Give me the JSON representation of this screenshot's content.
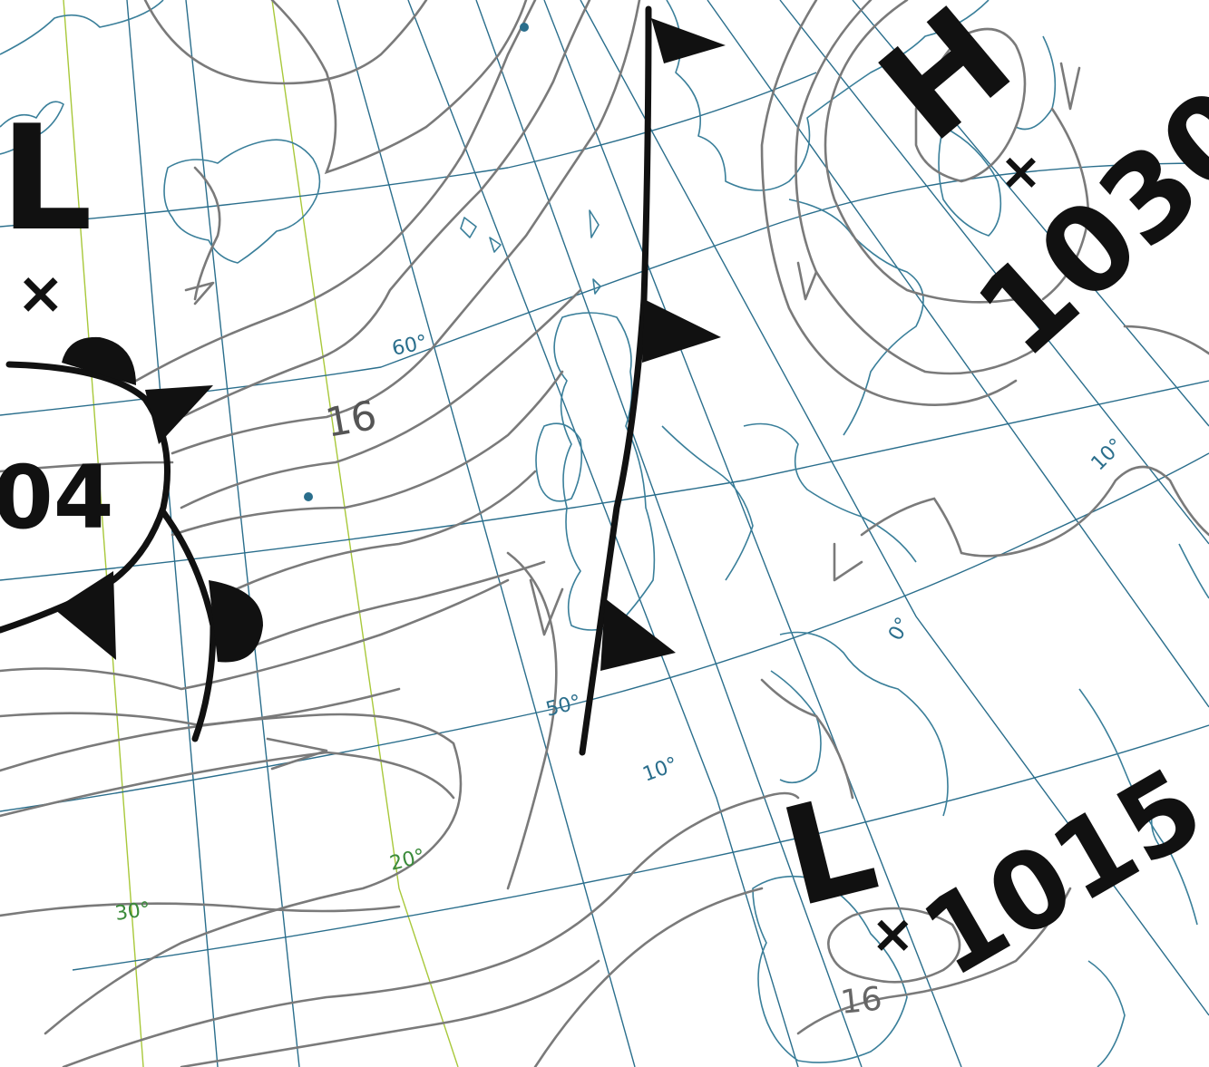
{
  "map": {
    "latitude_labels": [
      "60°",
      "50°"
    ],
    "longitude_labels": [
      "30°",
      "20°",
      "10°",
      "0°",
      "10°"
    ],
    "isobar_labels": [
      "16",
      "16"
    ],
    "pressure_systems": [
      {
        "type_letter": "L",
        "value": "04"
      },
      {
        "type_letter": "H",
        "value": "1030"
      },
      {
        "type_letter": "L",
        "value": "1015"
      }
    ],
    "center_marker": "×",
    "colors": {
      "graticule": "#2a6e8c",
      "graticule_alt": "#a8c83a",
      "coastline": "#3a7f9a",
      "isobar": "#7a7a7a",
      "front": "#111111"
    }
  }
}
